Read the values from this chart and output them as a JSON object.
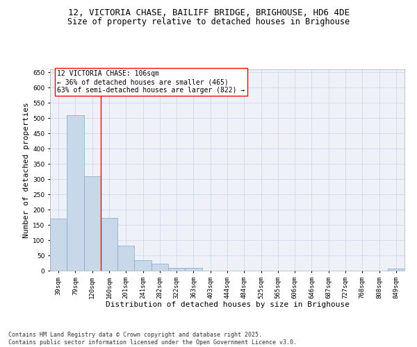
{
  "title_line1": "12, VICTORIA CHASE, BAILIFF BRIDGE, BRIGHOUSE, HD6 4DE",
  "title_line2": "Size of property relative to detached houses in Brighouse",
  "xlabel": "Distribution of detached houses by size in Brighouse",
  "ylabel": "Number of detached properties",
  "bar_labels": [
    "39sqm",
    "79sqm",
    "120sqm",
    "160sqm",
    "201sqm",
    "241sqm",
    "282sqm",
    "322sqm",
    "363sqm",
    "403sqm",
    "444sqm",
    "484sqm",
    "525sqm",
    "565sqm",
    "606sqm",
    "646sqm",
    "687sqm",
    "727sqm",
    "768sqm",
    "808sqm",
    "849sqm"
  ],
  "bar_values": [
    170,
    510,
    310,
    173,
    82,
    35,
    22,
    8,
    8,
    0,
    0,
    0,
    0,
    0,
    0,
    0,
    0,
    0,
    0,
    0,
    6
  ],
  "bar_color": "#c8d8e8",
  "bar_edge_color": "#7aaacc",
  "bar_width": 1.0,
  "vline_x": 2.5,
  "vline_color": "red",
  "annotation_text": "12 VICTORIA CHASE: 106sqm\n← 36% of detached houses are smaller (465)\n63% of semi-detached houses are larger (822) →",
  "annotation_box_color": "white",
  "annotation_box_edge_color": "red",
  "annotation_fontsize": 7,
  "ylim": [
    0,
    660
  ],
  "yticks": [
    0,
    50,
    100,
    150,
    200,
    250,
    300,
    350,
    400,
    450,
    500,
    550,
    600,
    650
  ],
  "grid_color": "#d0d8e8",
  "bg_color": "#eef2f8",
  "title_fontsize": 9,
  "subtitle_fontsize": 8.5,
  "xlabel_fontsize": 8,
  "ylabel_fontsize": 8,
  "tick_fontsize": 6.5,
  "footer_line1": "Contains HM Land Registry data © Crown copyright and database right 2025.",
  "footer_line2": "Contains public sector information licensed under the Open Government Licence v3.0.",
  "footer_fontsize": 6
}
